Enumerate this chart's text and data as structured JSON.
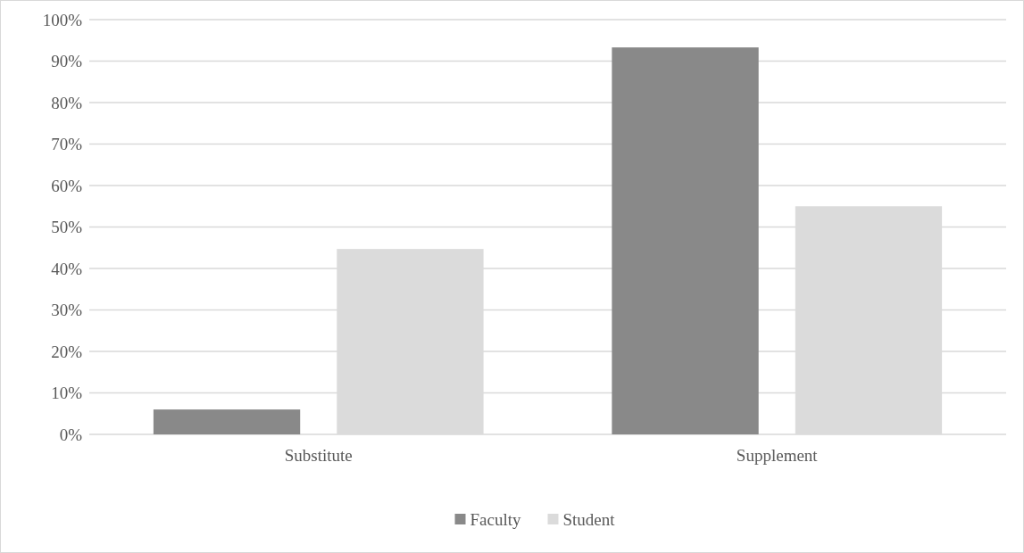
{
  "chart_data": {
    "type": "bar",
    "categories": [
      "Substitute",
      "Supplement"
    ],
    "series": [
      {
        "name": "Faculty",
        "color": "#898989",
        "values": [
          6,
          93.3
        ]
      },
      {
        "name": "Student",
        "color": "#dbdbdb",
        "values": [
          44.7,
          55
        ]
      }
    ],
    "ylim": [
      0,
      100
    ],
    "yticks": [
      {
        "value": 0,
        "label": "0%"
      },
      {
        "value": 10,
        "label": "10%"
      },
      {
        "value": 20,
        "label": "20%"
      },
      {
        "value": 30,
        "label": "30%"
      },
      {
        "value": 40,
        "label": "40%"
      },
      {
        "value": 50,
        "label": "50%"
      },
      {
        "value": 60,
        "label": "60%"
      },
      {
        "value": 70,
        "label": "70%"
      },
      {
        "value": 80,
        "label": "80%"
      },
      {
        "value": 90,
        "label": "90%"
      },
      {
        "value": 100,
        "label": "100%"
      }
    ],
    "grid": "y",
    "legend": "bottom"
  }
}
